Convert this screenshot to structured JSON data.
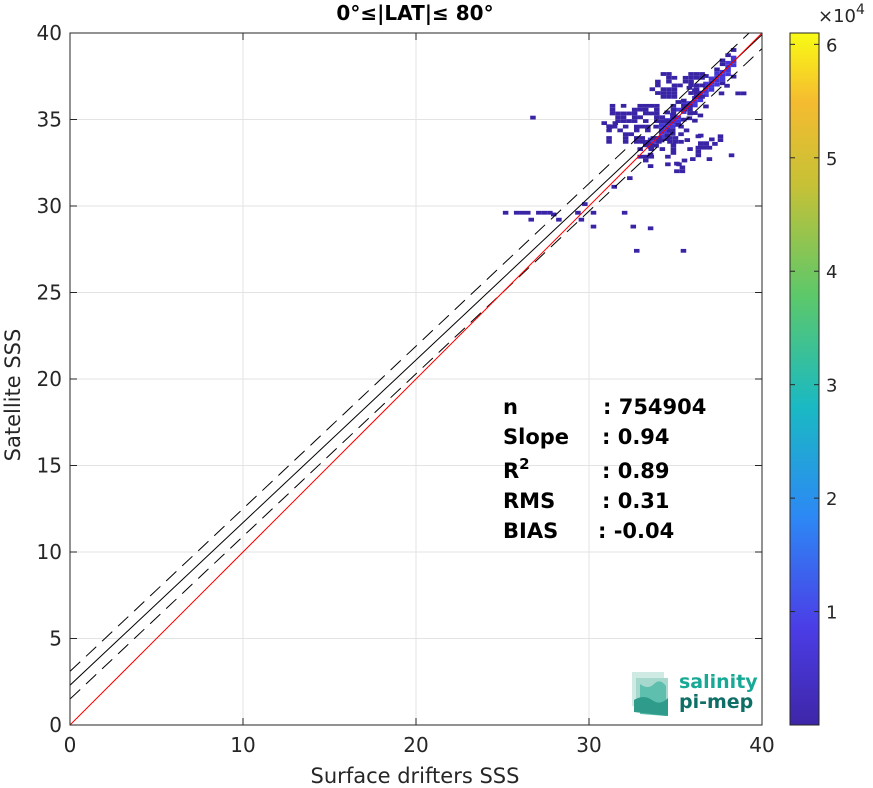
{
  "chart_data": {
    "type": "scatter",
    "title": "0°≤|LAT|≤ 80°",
    "xlabel": "Surface drifters SSS",
    "ylabel": "Satellite SSS",
    "xlim": [
      0,
      40
    ],
    "ylim": [
      0,
      40
    ],
    "xticks": [
      0,
      10,
      20,
      30,
      40
    ],
    "yticks": [
      0,
      5,
      10,
      15,
      20,
      25,
      30,
      35,
      40
    ],
    "grid": true,
    "colorbar": {
      "range": [
        0,
        6.1
      ],
      "ticks": [
        1,
        2,
        3,
        4,
        5,
        6
      ],
      "exponent_label": "×10",
      "exponent_power": "4",
      "colors": [
        "#3e26a8",
        "#4b3de6",
        "#2d88f5",
        "#1ab9c3",
        "#5cc86a",
        "#c6c136",
        "#f5bb30",
        "#f9fb14"
      ]
    },
    "lines": {
      "identity": {
        "slope": 1,
        "intercept": 0,
        "color": "#ff0000"
      },
      "fit": {
        "slope": 0.94,
        "intercept": 2.3,
        "color": "#000000"
      },
      "fit_upper": {
        "slope": 0.94,
        "intercept": 3.1,
        "style": "dashed"
      },
      "fit_lower": {
        "slope": 0.94,
        "intercept": 1.5,
        "style": "dashed"
      }
    },
    "density_region": {
      "x": [
        26,
        39.5
      ],
      "y": [
        27,
        38
      ]
    },
    "stats": [
      {
        "label": "n",
        "value": ": 754904"
      },
      {
        "label": "Slope",
        "value": ": 0.94"
      },
      {
        "label": "R",
        "sup": "2",
        "value": ": 0.89"
      },
      {
        "label": "RMS",
        "value": ": 0.31"
      },
      {
        "label": "BIAS",
        "value": ": -0.04"
      }
    ]
  },
  "logo": {
    "line1": "salinity",
    "line2": "pi-mep",
    "color": "#17a995",
    "color2": "#0f6f66"
  }
}
